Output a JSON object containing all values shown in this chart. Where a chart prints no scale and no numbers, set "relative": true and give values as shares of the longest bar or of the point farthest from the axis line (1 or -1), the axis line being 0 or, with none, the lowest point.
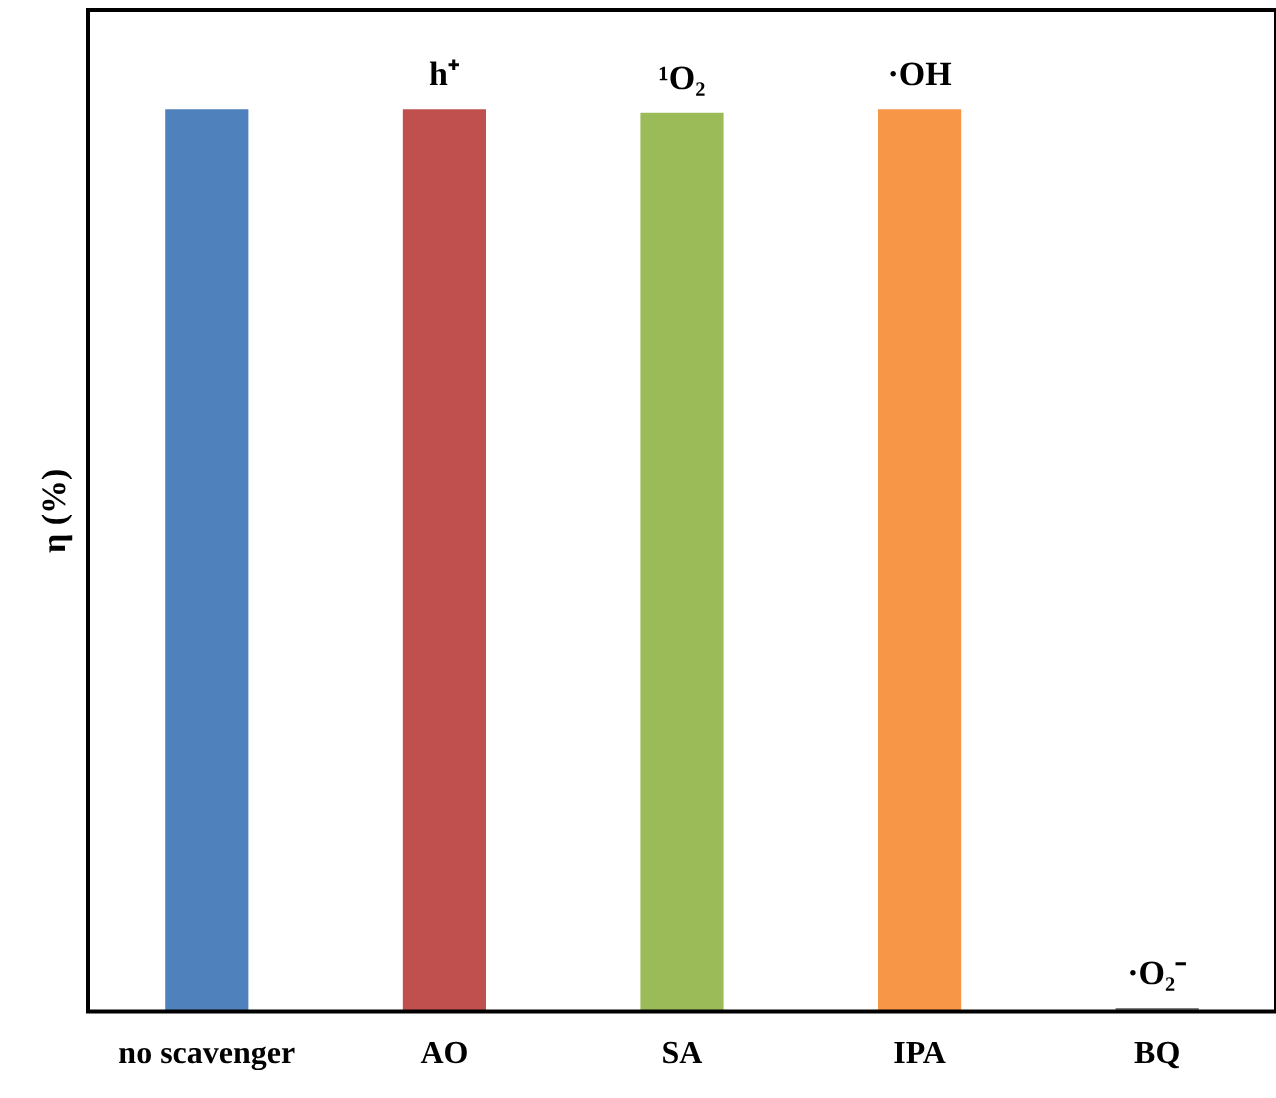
{
  "chart_data": {
    "type": "bar",
    "relative": true,
    "ylabel": "η (%)",
    "categories": [
      "no scavenger",
      "AO",
      "SA",
      "IPA",
      "BQ"
    ],
    "values": [
      1,
      1,
      0.996,
      1,
      0.004
    ],
    "colors": [
      "#4f81bd",
      "#c0504d",
      "#9bbb59",
      "#f79646",
      "#7f7f7f"
    ],
    "annotations": [
      {
        "text": "h⁺",
        "x": "AO",
        "y": 1
      },
      {
        "text": "¹O₂",
        "x": "SA",
        "y": 0.996
      },
      {
        "text": "·OH",
        "x": "IPA",
        "y": 1
      },
      {
        "text": "·O₂⁻",
        "x": "BQ",
        "y": 0.004
      }
    ],
    "grid": false,
    "legend": false
  }
}
